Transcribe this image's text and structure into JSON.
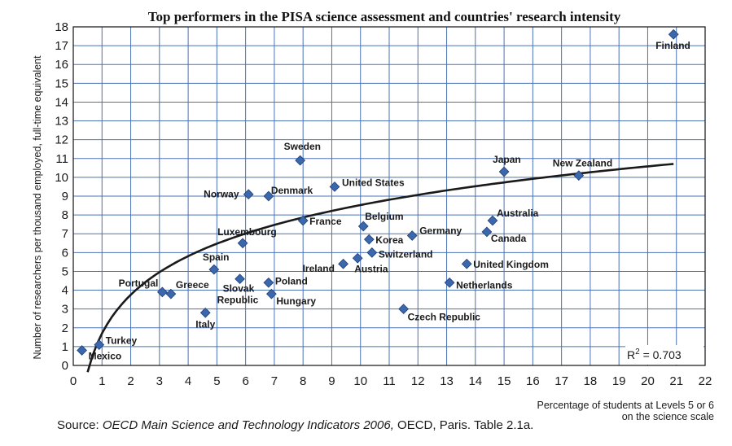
{
  "chart_data": {
    "type": "scatter",
    "title": "Top performers in the PISA science assessment and countries' research intensity",
    "xlabel_line1": "Percentage of students at Levels  5 or 6",
    "xlabel_line2": "on the science scale",
    "ylabel": "Number of researchers per thousand employed, full-time equivalent",
    "xlim": [
      0,
      22
    ],
    "ylim": [
      0,
      18
    ],
    "x_ticks": [
      0,
      1,
      2,
      3,
      4,
      5,
      6,
      7,
      8,
      9,
      10,
      11,
      12,
      13,
      14,
      15,
      16,
      17,
      18,
      19,
      20,
      21,
      22
    ],
    "y_ticks": [
      0,
      1,
      2,
      3,
      4,
      5,
      6,
      7,
      8,
      9,
      10,
      11,
      12,
      13,
      14,
      15,
      16,
      17,
      18
    ],
    "grid": true,
    "marker_color": "#3b67ad",
    "grid_color": "#4a72b5",
    "trendline": {
      "type": "logarithmic",
      "a": 1.7,
      "b": 2.965,
      "x_start": 0.5,
      "x_end": 20.9
    },
    "r2_label": "R",
    "r2_sup": "2",
    "r2_value": " = 0.703",
    "points": [
      {
        "country": "Mexico",
        "x": 0.3,
        "y": 0.8
      },
      {
        "country": "Turkey",
        "x": 0.9,
        "y": 1.1
      },
      {
        "country": "Portugal",
        "x": 3.1,
        "y": 3.9
      },
      {
        "country": "Greece",
        "x": 3.4,
        "y": 3.8
      },
      {
        "country": "Italy",
        "x": 4.6,
        "y": 2.8
      },
      {
        "country": "Spain",
        "x": 4.9,
        "y": 5.1
      },
      {
        "country": "Slovak Republic",
        "x": 5.8,
        "y": 4.6
      },
      {
        "country": "Luxembourg",
        "x": 5.9,
        "y": 6.5
      },
      {
        "country": "Norway",
        "x": 6.1,
        "y": 9.1
      },
      {
        "country": "Denmark",
        "x": 6.8,
        "y": 9.0
      },
      {
        "country": "Poland",
        "x": 6.8,
        "y": 4.4
      },
      {
        "country": "Hungary",
        "x": 6.9,
        "y": 3.8
      },
      {
        "country": "Sweden",
        "x": 7.9,
        "y": 10.9
      },
      {
        "country": "France",
        "x": 8.0,
        "y": 7.7
      },
      {
        "country": "United States",
        "x": 9.1,
        "y": 9.5
      },
      {
        "country": "Ireland",
        "x": 9.4,
        "y": 5.4
      },
      {
        "country": "Austria",
        "x": 9.9,
        "y": 5.7
      },
      {
        "country": "Belgium",
        "x": 10.1,
        "y": 7.4
      },
      {
        "country": "Korea",
        "x": 10.3,
        "y": 6.7
      },
      {
        "country": "Switzerland",
        "x": 10.4,
        "y": 6.0
      },
      {
        "country": "Czech Republic",
        "x": 11.5,
        "y": 3.0
      },
      {
        "country": "Germany",
        "x": 11.8,
        "y": 6.9
      },
      {
        "country": "Netherlands",
        "x": 13.1,
        "y": 4.4
      },
      {
        "country": "United Kingdom",
        "x": 13.7,
        "y": 5.4
      },
      {
        "country": "Canada",
        "x": 14.4,
        "y": 7.1
      },
      {
        "country": "Australia",
        "x": 14.6,
        "y": 7.7
      },
      {
        "country": "Japan",
        "x": 15.0,
        "y": 10.3
      },
      {
        "country": "New Zealand",
        "x": 17.6,
        "y": 10.1
      },
      {
        "country": "Finland",
        "x": 20.9,
        "y": 17.6
      }
    ]
  },
  "source": {
    "prefix": "Source: ",
    "italic": "OECD Main Science and Technology Indicators 2006,",
    "suffix": " OECD, Paris. Table 2.1a."
  }
}
